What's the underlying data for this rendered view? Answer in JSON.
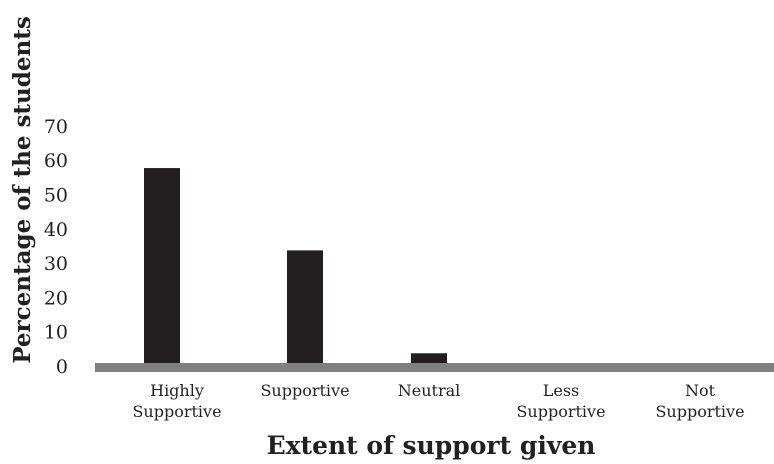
{
  "chart_data": {
    "type": "bar",
    "categories": [
      [
        "Highly",
        "Supportive"
      ],
      [
        "Supportive"
      ],
      [
        "Neutral"
      ],
      [
        "Less",
        "Supportive"
      ],
      [
        "Not",
        "Supportive"
      ]
    ],
    "values": [
      58,
      34,
      4,
      1,
      0
    ],
    "xlabel": "Extent of support given",
    "ylabel": "Percentage of the students",
    "ylim": [
      0,
      70
    ],
    "yticks": [
      "0",
      "10",
      "20",
      "30",
      "40",
      "50",
      "60",
      "70"
    ],
    "grid": false,
    "legend": "none",
    "colors": {
      "bar": "#231f20",
      "baseline": "#7f7f7f",
      "text": "#231f20"
    }
  }
}
